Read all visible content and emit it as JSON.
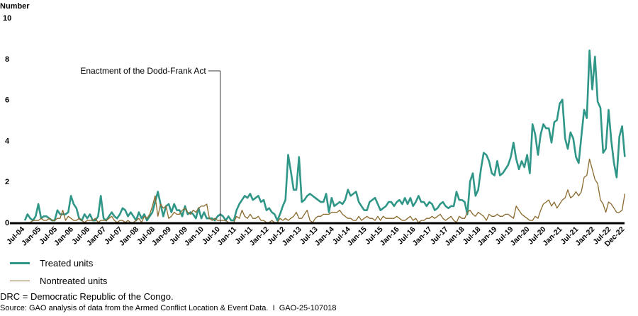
{
  "chart_data": {
    "type": "line",
    "ylabel": "Number",
    "ylim": [
      0,
      10
    ],
    "yticks": [
      0,
      2,
      4,
      6,
      8,
      10
    ],
    "x_start": "Jul-04",
    "x_end": "Dec-22",
    "x_frequency": "monthly",
    "xtick_labels": [
      "Jul-04",
      "Jan-05",
      "Jul-05",
      "Jan-06",
      "Jul-06",
      "Jan-07",
      "Jul-07",
      "Jan-08",
      "Jul-08",
      "Jan-09",
      "Jul-09",
      "Jan-10",
      "Jul-10",
      "Jan-11",
      "Jul-11",
      "Jan-12",
      "Jul-12",
      "Jan-13",
      "Jul-13",
      "Jan-14",
      "Jul-14",
      "Jan-15",
      "Jul-15",
      "Jan-16",
      "Jul-16",
      "Jan-17",
      "Jul-17",
      "Jan-18",
      "Jul-18",
      "Jan-19",
      "Jul-19",
      "Jan-20",
      "Jul-20",
      "Jan-21",
      "Jul-21",
      "Jan-22",
      "Jul-22",
      "Dec-22"
    ],
    "annotation": {
      "text": "Enactment of the Dodd-Frank Act",
      "at": "Jul-10"
    },
    "series": [
      {
        "name": "Treated units",
        "color": "#2f9688",
        "values": [
          0.1,
          0.4,
          0.2,
          0.1,
          0.3,
          0.9,
          0.2,
          0.3,
          0.3,
          0.2,
          0.1,
          0.1,
          0.6,
          0.4,
          0.4,
          0.4,
          0.5,
          1.3,
          0.9,
          0.7,
          0.2,
          0.1,
          0.4,
          0.2,
          0.4,
          0.1,
          0.1,
          0.3,
          1.3,
          0.2,
          0.1,
          0.3,
          0.5,
          0.3,
          0.2,
          0.4,
          0.7,
          0.6,
          0.3,
          0.5,
          0.3,
          0.1,
          0.5,
          0.2,
          0.4,
          0.1,
          0.3,
          0.5,
          1.0,
          1.5,
          0.9,
          0.3,
          0.8,
          0.9,
          0.5,
          0.9,
          0.6,
          0.6,
          0.3,
          0.8,
          0.4,
          0.5,
          0.4,
          0.2,
          0.7,
          0.2,
          0.5,
          0.2,
          0.2,
          0.2,
          0.1,
          0.3,
          0.4,
          0.3,
          0.1,
          0.3,
          0.1,
          0.1,
          0.6,
          0.9,
          1.1,
          1.3,
          1.2,
          1.4,
          1.1,
          1.2,
          1.3,
          1.0,
          1.1,
          0.6,
          0.7,
          0.5,
          0.4,
          0.1,
          0.4,
          0.8,
          1.1,
          3.3,
          2.5,
          1.6,
          1.6,
          3.2,
          1.0,
          1.1,
          1.3,
          1.4,
          1.3,
          1.2,
          1.1,
          1.0,
          1.0,
          1.4,
          0.5,
          1.2,
          0.8,
          0.9,
          1.0,
          0.9,
          1.1,
          1.6,
          1.3,
          1.4,
          1.5,
          1.0,
          0.8,
          0.6,
          0.6,
          1.0,
          1.1,
          1.2,
          0.9,
          0.6,
          0.7,
          0.8,
          1.0,
          1.0,
          0.8,
          1.0,
          1.1,
          0.9,
          1.2,
          0.9,
          1.2,
          0.8,
          1.0,
          1.3,
          1.0,
          1.0,
          0.8,
          1.0,
          0.9,
          0.6,
          0.7,
          0.9,
          1.0,
          0.8,
          0.7,
          0.8,
          0.8,
          1.5,
          1.1,
          1.1,
          1.0,
          0.4,
          2.0,
          2.4,
          1.3,
          1.6,
          2.6,
          3.4,
          3.3,
          3.0,
          2.4,
          2.3,
          3.0,
          2.3,
          2.4,
          2.6,
          2.8,
          3.2,
          3.9,
          3.1,
          2.6,
          3.0,
          2.7,
          3.3,
          2.4,
          4.8,
          4.3,
          3.3,
          4.3,
          4.8,
          4.6,
          4.6,
          3.9,
          4.9,
          5.0,
          5.8,
          6.0,
          4.1,
          3.6,
          4.4,
          4.1,
          3.2,
          2.9,
          4.2,
          5.5,
          5.1,
          8.4,
          6.5,
          8.1,
          5.9,
          5.6,
          3.4,
          3.6,
          5.5,
          4.0,
          2.9,
          2.2,
          4.2,
          4.7,
          3.2
        ]
      },
      {
        "name": "Nontreated units",
        "color": "#8a6a2e",
        "values": [
          0,
          0,
          0,
          0.1,
          0.1,
          0.1,
          0.2,
          0.1,
          0.1,
          0.2,
          0.1,
          0.1,
          0.2,
          0.2,
          0.6,
          0.1,
          0.3,
          0.2,
          0.1,
          0.1,
          0.2,
          0.1,
          0,
          0.1,
          0.1,
          0.1,
          0.2,
          0,
          0.1,
          0.1,
          0.1,
          0.2,
          0.3,
          0.1,
          0,
          0.1,
          0.1,
          0,
          0.1,
          0,
          0,
          0.1,
          0.2,
          0,
          0.3,
          0.2,
          0.4,
          0.8,
          1.3,
          0.3,
          0.9,
          0.7,
          0.8,
          0.2,
          0.3,
          0.5,
          0.4,
          0.4,
          0.6,
          0.7,
          0.5,
          0.4,
          0.6,
          0.5,
          0.7,
          0.8,
          0.8,
          0.9,
          0.2,
          0.1,
          0.2,
          0.1,
          0.1,
          0.1,
          0.1,
          0,
          0,
          0,
          0.3,
          0.2,
          0.6,
          0.3,
          0.2,
          0.4,
          0.2,
          0.2,
          0.3,
          0.1,
          0.1,
          0,
          0,
          0.1,
          0,
          0,
          0.2,
          0.1,
          0.2,
          0.1,
          0.2,
          0.3,
          0.5,
          0.2,
          0.2,
          0.4,
          0.6,
          0.1,
          0,
          0.2,
          0.3,
          0.3,
          0.4,
          0.4,
          0.4,
          0.5,
          0.5,
          0.5,
          0.6,
          0.4,
          0.3,
          0.2,
          0.2,
          0.1,
          0.1,
          0.3,
          0.1,
          0.2,
          0.3,
          0.2,
          0.2,
          0.1,
          0.3,
          0.1,
          0.3,
          0.2,
          0.2,
          0.2,
          0.2,
          0.3,
          0.2,
          0.1,
          0.1,
          0.2,
          0.3,
          0.1,
          0.2,
          0,
          0.1,
          0.1,
          0.2,
          0.2,
          0.3,
          0.2,
          0.3,
          0.4,
          0.2,
          0.1,
          0.2,
          0.3,
          0.1,
          0,
          0.3,
          0.2,
          0.2,
          0.5,
          0.6,
          0.4,
          0.3,
          0.5,
          0.4,
          0.3,
          0.1,
          0.4,
          0.3,
          0.3,
          0.4,
          0.3,
          0.3,
          0.4,
          0.4,
          0.3,
          0.2,
          0.8,
          0.6,
          0.4,
          0.3,
          0.2,
          0.1,
          0.1,
          0.3,
          0.2,
          0.6,
          0.9,
          1.0,
          1.1,
          0.8,
          1.0,
          0.7,
          0.9,
          1.1,
          1.2,
          1.6,
          1.2,
          1.3,
          1.5,
          1.3,
          1.5,
          2.2,
          2.3,
          3.1,
          2.6,
          2.1,
          1.9,
          1.1,
          0.9,
          0.5,
          1.0,
          0.9,
          0.7,
          0.5,
          0.5,
          0.6,
          1.4
        ]
      }
    ]
  },
  "legend": {
    "treated": "Treated units",
    "nontreated": "Nontreated units"
  },
  "footnote": "DRC = Democratic Republic of the Congo.",
  "source": "Source: GAO analysis of data from the Armed Conflict Location & Event Data.  I  GAO-25-107018"
}
